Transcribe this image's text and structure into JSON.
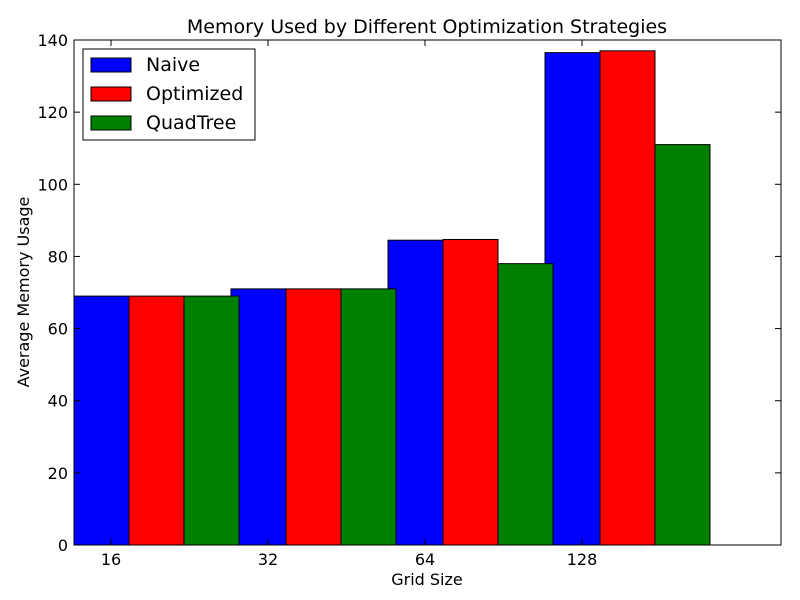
{
  "chart_data": {
    "type": "bar",
    "title": "Memory Used by Different Optimization Strategies",
    "xlabel": "Grid Size",
    "ylabel": "Average Memory Usage",
    "categories": [
      "16",
      "32",
      "64",
      "128"
    ],
    "ylim": [
      0,
      140
    ],
    "yticks": [
      0,
      20,
      40,
      60,
      80,
      100,
      120,
      140
    ],
    "grid": false,
    "legend_position": "top-left",
    "series": [
      {
        "name": "Naive",
        "color": "#0000ff",
        "values": [
          69,
          71,
          84.5,
          136.5
        ]
      },
      {
        "name": "Optimized",
        "color": "#ff0000",
        "values": [
          69,
          71,
          84.7,
          137
        ]
      },
      {
        "name": "QuadTree",
        "color": "#008000",
        "values": [
          69,
          71,
          78,
          111
        ]
      }
    ]
  }
}
